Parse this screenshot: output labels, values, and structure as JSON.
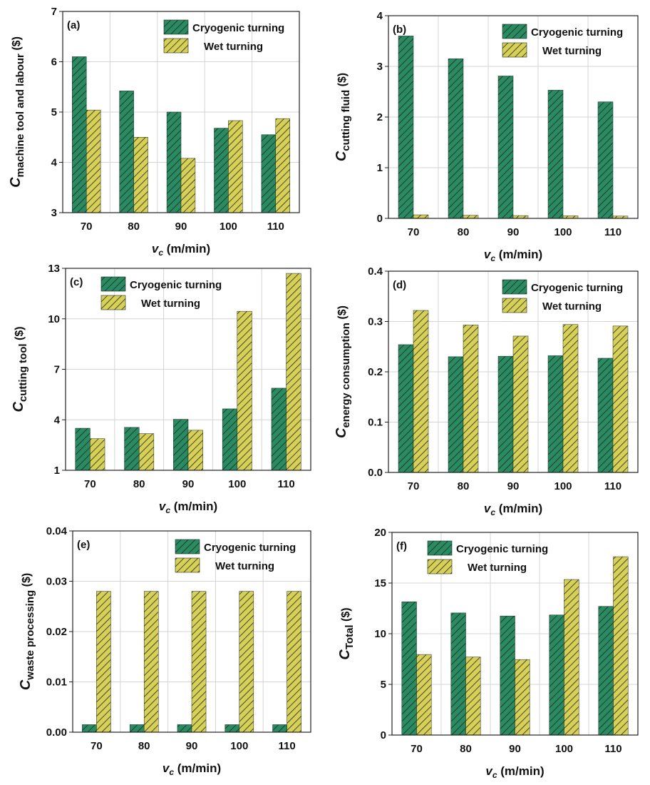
{
  "colors": {
    "cryo": "#2a8a62",
    "wet": "#d8cf57",
    "hatch": "#1b2a22",
    "grid": "#d4d4d4"
  },
  "chart_data": [
    {
      "panel": "(a)",
      "type": "bar",
      "categories": [
        "70",
        "80",
        "90",
        "100",
        "110"
      ],
      "series": [
        {
          "name": "Cryogenic turning",
          "values": [
            6.1,
            5.42,
            5.0,
            4.68,
            4.55
          ]
        },
        {
          "name": "Wet turning",
          "values": [
            5.04,
            4.5,
            4.08,
            4.83,
            4.87
          ]
        }
      ],
      "ylim": [
        3,
        7
      ],
      "yticks": [
        "3",
        "4",
        "5",
        "6",
        "7"
      ],
      "ylabel_main": "C",
      "ylabel_sub": "machine tool and labour",
      "ylabel_unit": " ($)",
      "xlabel_main": "v",
      "xlabel_sub": "c",
      "xlabel_unit": " (m/min)",
      "legend": "top-right",
      "grid": true
    },
    {
      "panel": "(b)",
      "type": "bar",
      "categories": [
        "70",
        "80",
        "90",
        "100",
        "110"
      ],
      "series": [
        {
          "name": "Cryogenic turning",
          "values": [
            3.6,
            3.15,
            2.81,
            2.53,
            2.3
          ]
        },
        {
          "name": "Wet turning",
          "values": [
            0.07,
            0.06,
            0.055,
            0.05,
            0.045
          ]
        }
      ],
      "ylim": [
        0,
        4
      ],
      "yticks": [
        "0",
        "1",
        "2",
        "3",
        "4"
      ],
      "ylabel_main": "C",
      "ylabel_sub": "cutting fluid",
      "ylabel_unit": " ($)",
      "xlabel_main": "v",
      "xlabel_sub": "c",
      "xlabel_unit": " (m/min)",
      "legend": "top-right",
      "grid": true
    },
    {
      "panel": "(c)",
      "type": "bar",
      "categories": [
        "70",
        "80",
        "90",
        "100",
        "110"
      ],
      "series": [
        {
          "name": "Cryogenic turning",
          "values": [
            3.5,
            3.55,
            4.03,
            4.65,
            5.88
          ]
        },
        {
          "name": "Wet turning",
          "values": [
            2.88,
            3.18,
            3.38,
            10.45,
            12.7
          ]
        }
      ],
      "ylim": [
        1,
        13
      ],
      "yticks": [
        "1",
        "4",
        "7",
        "10",
        "13"
      ],
      "ylabel_main": "C",
      "ylabel_sub": "cutting tool",
      "ylabel_unit": " ($)",
      "xlabel_main": "v",
      "xlabel_sub": "c",
      "xlabel_unit": " (m/min)",
      "legend": "top-left",
      "grid": true
    },
    {
      "panel": "(d)",
      "type": "bar",
      "categories": [
        "70",
        "80",
        "90",
        "100",
        "110"
      ],
      "series": [
        {
          "name": "Cryogenic turning",
          "values": [
            0.254,
            0.23,
            0.231,
            0.232,
            0.227
          ]
        },
        {
          "name": "Wet turning",
          "values": [
            0.322,
            0.293,
            0.271,
            0.294,
            0.291
          ]
        }
      ],
      "ylim": [
        0.0,
        0.4
      ],
      "yticks": [
        "0.0",
        "0.1",
        "0.2",
        "0.3",
        "0.4"
      ],
      "ylabel_main": "C",
      "ylabel_sub": "energy consumption",
      "ylabel_unit": " ($)",
      "xlabel_main": "v",
      "xlabel_sub": "c",
      "xlabel_unit": " (m/min)",
      "legend": "top-right",
      "grid": true
    },
    {
      "panel": "(e)",
      "type": "bar",
      "categories": [
        "70",
        "80",
        "90",
        "100",
        "110"
      ],
      "series": [
        {
          "name": "Cryogenic turning",
          "values": [
            0.0015,
            0.0015,
            0.0015,
            0.0015,
            0.0015
          ]
        },
        {
          "name": "Wet turning",
          "values": [
            0.028,
            0.028,
            0.028,
            0.028,
            0.028
          ]
        }
      ],
      "ylim": [
        0.0,
        0.04
      ],
      "yticks": [
        "0.00",
        "0.01",
        "0.02",
        "0.03",
        "0.04"
      ],
      "ylabel_main": "C",
      "ylabel_sub": "waste processing",
      "ylabel_unit": " ($)",
      "xlabel_main": "v",
      "xlabel_sub": "c",
      "xlabel_unit": " (m/min)",
      "legend": "top-right",
      "grid": true
    },
    {
      "panel": "(f)",
      "type": "bar",
      "categories": [
        "70",
        "80",
        "90",
        "100",
        "110"
      ],
      "series": [
        {
          "name": "Cryogenic turning",
          "values": [
            13.15,
            12.05,
            11.75,
            11.85,
            12.7
          ]
        },
        {
          "name": "Wet turning",
          "values": [
            7.95,
            7.7,
            7.45,
            15.35,
            17.6
          ]
        }
      ],
      "ylim": [
        0,
        20
      ],
      "yticks": [
        "0",
        "5",
        "10",
        "15",
        "20"
      ],
      "ylabel_main": "C",
      "ylabel_sub": "Total",
      "ylabel_unit": " ($)",
      "xlabel_main": "v",
      "xlabel_sub": "c",
      "xlabel_unit": " (m/min)",
      "legend": "top-left",
      "grid": true
    }
  ]
}
